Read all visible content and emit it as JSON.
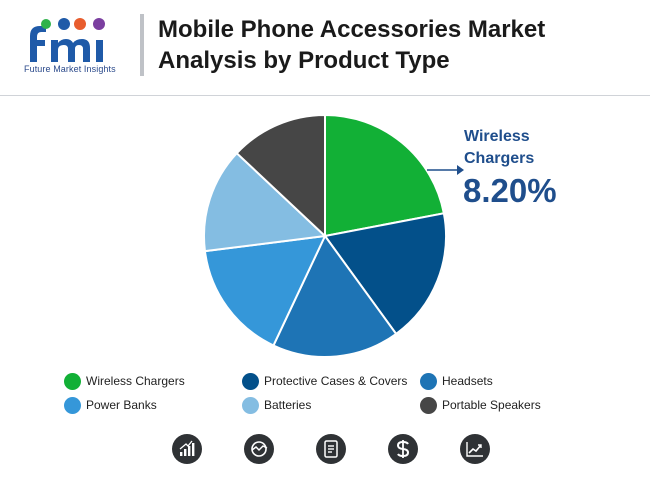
{
  "header": {
    "logo_text": "Future Market Insights",
    "title_line1": "Mobile Phone Accessories Market",
    "title_line2": "Analysis by Product Type"
  },
  "callout": {
    "label_line1": "Wireless",
    "label_line2": "Chargers",
    "value": "8.20%"
  },
  "colors": {
    "wireless_chargers": "#12b036",
    "protective_cases": "#03508a",
    "headsets": "#1e74b5",
    "power_banks": "#3597d9",
    "batteries": "#84bde2",
    "portable_speakers": "#464646",
    "title": "#1a1a1a",
    "callout": "#1f4e8c"
  },
  "chart_data": {
    "type": "pie",
    "title": "Mobile Phone Accessories Market Analysis by Product Type",
    "categories": [
      "Wireless Chargers",
      "Protective Cases & Covers",
      "Headsets",
      "Power Banks",
      "Batteries",
      "Portable Speakers"
    ],
    "values": [
      22,
      18,
      17,
      16,
      14,
      13
    ],
    "highlight": {
      "category": "Wireless Chargers",
      "label": "8.20%"
    },
    "legend_position": "bottom"
  },
  "legend": [
    {
      "label": "Wireless Chargers",
      "color": "#12b036"
    },
    {
      "label": "Protective Cases & Covers",
      "color": "#03508a"
    },
    {
      "label": "Headsets",
      "color": "#1e74b5"
    },
    {
      "label": "Power Banks",
      "color": "#3597d9"
    },
    {
      "label": "Batteries",
      "color": "#84bde2"
    },
    {
      "label": "Portable Speakers",
      "color": "#464646"
    }
  ],
  "footer_icons": [
    "bar-chart-icon",
    "market-analysis-icon",
    "report-document-icon",
    "dollar-icon",
    "trend-chart-icon"
  ]
}
